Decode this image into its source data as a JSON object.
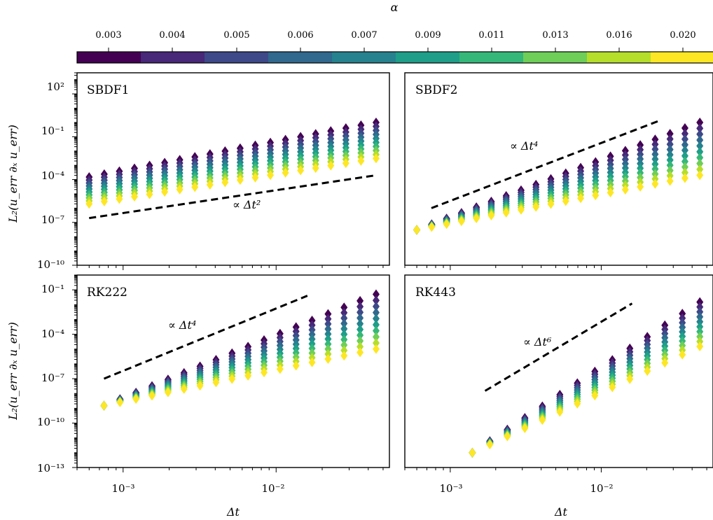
{
  "colorbar": {
    "label": "α",
    "ticks": [
      "0.003",
      "0.004",
      "0.005",
      "0.006",
      "0.007",
      "0.009",
      "0.011",
      "0.013",
      "0.016",
      "0.020"
    ],
    "colors": [
      "#440154",
      "#482878",
      "#3e4989",
      "#31688e",
      "#26828e",
      "#1f9e89",
      "#35b779",
      "#6ece58",
      "#b5de2b",
      "#fde725"
    ]
  },
  "x_axis": {
    "label": "Δt",
    "scale": "log",
    "range": [
      0.0005,
      0.055
    ],
    "tick_labels": [
      "10⁻³",
      "10⁻²"
    ]
  },
  "y_axis": {
    "label": "L₂(u_err ∂ₓ u_err)",
    "scale": "log",
    "top_row_range": [
      1e-10,
      3000
    ],
    "bottom_row_range": [
      1e-13,
      1
    ],
    "top_row_tick_labels": [
      "10⁻¹⁰",
      "10⁻⁷",
      "10⁻⁴",
      "10⁻¹",
      "10²"
    ],
    "bottom_row_tick_labels": [
      "10⁻¹³",
      "10⁻¹⁰",
      "10⁻⁷",
      "10⁻⁴",
      "10⁻¹"
    ]
  },
  "panels": [
    {
      "name": "SBDF1",
      "slope_label": "∝ Δt²"
    },
    {
      "name": "SBDF2",
      "slope_label": "∝ Δt⁴"
    },
    {
      "name": "RK222",
      "slope_label": "∝ Δt⁴"
    },
    {
      "name": "RK443",
      "slope_label": "∝ Δt⁶"
    }
  ],
  "chart_data": [
    {
      "type": "scatter",
      "title": "SBDF1",
      "xscale": "log",
      "yscale": "log",
      "xlim": [
        0.0005,
        0.055
      ],
      "ylim": [
        1e-10,
        3000
      ],
      "dt_range": [
        0.0006,
        0.045
      ],
      "n_dt": 20,
      "max_error_curve": {
        "slope": 1.8,
        "at_dt_min": 0.00015,
        "at_dt_max": 1.0
      },
      "min_error_curve": {
        "slope": 1.8,
        "at_dt_min": 2e-06,
        "at_dt_max": 0.003
      },
      "reference_line": {
        "label": "∝ Δt²",
        "slope": 2,
        "dt": [
          0.0006,
          0.045
        ],
        "y": [
          2e-07,
          0.0002
        ]
      }
    },
    {
      "type": "scatter",
      "title": "SBDF2",
      "xscale": "log",
      "yscale": "log",
      "xlim": [
        0.0005,
        0.055
      ],
      "ylim": [
        1e-10,
        3000
      ],
      "dt_range": [
        0.0006,
        0.045
      ],
      "n_dt": 20,
      "max_error_curve": {
        "slope": 3.6,
        "at_dt_min": 3e-08,
        "at_dt_max": 1.0
      },
      "min_error_curve": {
        "slope": 3.6,
        "at_dt_min": 3e-08,
        "at_dt_max": 0.0002
      },
      "reference_line": {
        "label": "∝ Δt⁴",
        "slope": 4,
        "dt": [
          0.00075,
          0.025
        ],
        "y": [
          1e-06,
          1.5
        ]
      }
    },
    {
      "type": "scatter",
      "title": "RK222",
      "xscale": "log",
      "yscale": "log",
      "xlim": [
        0.0005,
        0.055
      ],
      "ylim": [
        1e-13,
        1
      ],
      "dt_range": [
        0.00075,
        0.045
      ],
      "n_dt": 18,
      "max_error_curve": {
        "slope": 3.8,
        "at_dt_min": 1.5e-09,
        "at_dt_max": 0.05
      },
      "min_error_curve": {
        "slope": 3.8,
        "at_dt_min": 1.5e-09,
        "at_dt_max": 1e-05
      },
      "reference_line": {
        "label": "∝ Δt⁴",
        "slope": 4,
        "dt": [
          0.00075,
          0.016
        ],
        "y": [
          1e-07,
          0.04
        ]
      }
    },
    {
      "type": "scatter",
      "title": "RK443",
      "xscale": "log",
      "yscale": "log",
      "xlim": [
        0.0005,
        0.055
      ],
      "ylim": [
        1e-13,
        1
      ],
      "dt_range": [
        0.0014,
        0.045
      ],
      "n_dt": 14,
      "max_error_curve": {
        "slope": 5.7,
        "at_dt_min": 1e-12,
        "at_dt_max": 0.015
      },
      "min_error_curve": {
        "slope": 5.7,
        "at_dt_min": 1e-12,
        "at_dt_max": 1.5e-05
      },
      "reference_line": {
        "label": "∝ Δt⁶",
        "slope": 6,
        "dt": [
          0.0017,
          0.016
        ],
        "y": [
          1.5e-08,
          0.012
        ]
      }
    }
  ]
}
